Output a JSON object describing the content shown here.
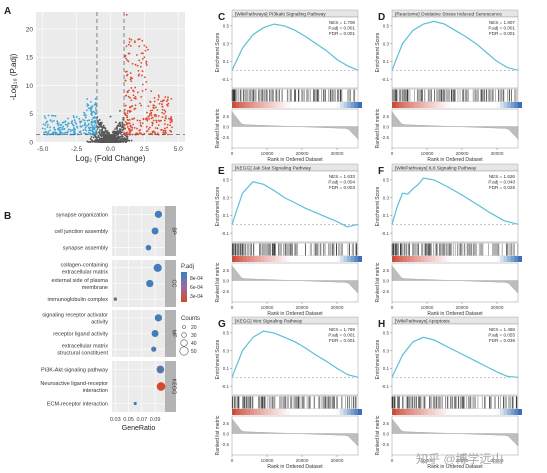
{
  "panels": {
    "A": {
      "letter": "A",
      "x_ticks": [
        "-5.0",
        "-2.5",
        "0.0",
        "2.5",
        "5.0"
      ],
      "y_ticks": [
        "0",
        "5",
        "10",
        "15",
        "20"
      ],
      "xlabel": "Log₂ (Fold Change)",
      "ylabel": "-Log₁₀ (P.adj)"
    },
    "B": {
      "letter": "B",
      "terms": [
        "synapse organization",
        "cell junction assembly",
        "synapse assembly",
        "collagen-containing extracellular matrix",
        "external side of plasma membrane",
        "immunoglobulin complex",
        "signaling receptor activator activity",
        "receptor ligand activity",
        "extracellular matrix structural constituent",
        "PI3K-Akt signaling pathway",
        "Neuroactive ligand-receptor interaction",
        "ECM-receptor interaction"
      ],
      "groups": [
        "BP",
        "CC",
        "MF",
        "KEGG"
      ],
      "x_ticks": [
        "0.03",
        "0.05",
        "0.07",
        "0.09"
      ],
      "xlabel": "GeneRatio",
      "legend_color_title": "P.adj",
      "legend_color_ticks": [
        "8e-04",
        "6e-04",
        "3e-04"
      ],
      "legend_size_title": "Counts",
      "legend_size_ticks": [
        "20",
        "30",
        "40",
        "50"
      ]
    },
    "C": {
      "letter": "C",
      "title": "[WikiPathways] PI3kakt Signaling Pathway",
      "nes": "NES = 1.708",
      "padj": "P.adj = 0.001",
      "fdr": "FDR = 0.001"
    },
    "D": {
      "letter": "D",
      "title": "[Reactome] Oxidative Stress Induced Senescence",
      "nes": "NES = 1.807",
      "padj": "P.adj = 0.001",
      "fdr": "FDR = 0.001"
    },
    "E": {
      "letter": "E",
      "title": "[KEGG] Jak Stat Signaling Pathway",
      "nes": "NES = 1.633",
      "padj": "P.adj = 0.004",
      "fdr": "FDR = 0.003"
    },
    "F": {
      "letter": "F",
      "title": "[WikiPathways] IL6 Signaling Pathway",
      "nes": "NES = 1.626",
      "padj": "P.adj = 0.040",
      "fdr": "FDR = 0.026"
    },
    "G": {
      "letter": "G",
      "title": "[KEGG] Wnt Signaling Pathway",
      "nes": "NES = 1.769",
      "padj": "P.adj = 0.001",
      "fdr": "FDR = 0.001"
    },
    "H": {
      "letter": "H",
      "title": "[WikiPathways] Apoptosis",
      "nes": "NES = 1.458",
      "padj": "P.adj = 0.055",
      "fdr": "FDR = 0.036"
    }
  },
  "gsea_common": {
    "es_ylabel": "Enrichment Score",
    "rank_ylabel": "Ranked list metric",
    "xlabel": "Rank in Ordered Dataset",
    "x_ticks": [
      "0",
      "10000",
      "20000",
      "30000"
    ]
  },
  "watermark": "知乎 @博学远山",
  "colors": {
    "up": "#e0492f",
    "down": "#3fa6d4",
    "ns": "#555555",
    "es_line": "#5bc0d6",
    "high_padj": "#3a80c4",
    "low_padj": "#d24a2a",
    "strip_red": "#d04a3a",
    "strip_blue": "#3a70b8"
  },
  "chart_data": [
    {
      "type": "scatter",
      "title": "",
      "xlabel": "Log₂ (Fold Change)",
      "ylabel": "-Log₁₀ (P.adj)",
      "xlim": [
        -5.5,
        5.5
      ],
      "ylim": [
        0,
        23
      ],
      "thresholds": {
        "fold_change": [
          -1,
          1
        ],
        "p_adj": 1.3
      },
      "series": [
        {
          "name": "",
          "points": [
            [
              -5.0,
              2.4
            ],
            [
              -3.8,
              3.2
            ],
            [
              -2.3,
              4.1
            ],
            [
              -1.5,
              6.0
            ],
            [
              -1.2,
              3.5
            ]
          ]
        },
        {
          "name": "",
          "points": [
            [
              -0.4,
              2.5
            ],
            [
              0.0,
              4.5
            ],
            [
              0.4,
              3.5
            ],
            [
              0.7,
              5.5
            ]
          ]
        },
        {
          "name": "",
          "points": [
            [
              1.2,
              22.5
            ],
            [
              1.5,
              17.0
            ],
            [
              2.0,
              13.5
            ],
            [
              2.5,
              15.0
            ],
            [
              3.0,
              9.0
            ],
            [
              4.5,
              4.0
            ]
          ]
        }
      ]
    },
    {
      "type": "scatter",
      "title": "",
      "xlabel": "GeneRatio",
      "x": [
        0.095,
        0.09,
        0.08,
        0.094,
        0.082,
        0.03,
        0.095,
        0.09,
        0.088,
        0.098,
        0.099,
        0.06
      ],
      "categories": [
        "synapse organization",
        "cell junction assembly",
        "synapse assembly",
        "collagen-containing extracellular matrix",
        "external side of plasma membrane",
        "immunoglobulin complex",
        "signaling receptor activator activity",
        "receptor ligand activity",
        "extracellular matrix structural constituent",
        "PI3K-Akt signaling pathway",
        "Neuroactive ligand-receptor interaction",
        "ECM-receptor interaction"
      ],
      "counts": [
        40,
        38,
        30,
        45,
        40,
        18,
        40,
        38,
        28,
        42,
        48,
        16
      ],
      "p_adj": [
        0.00085,
        0.00085,
        0.00085,
        0.00085,
        0.00085,
        0.0005,
        0.00085,
        0.00085,
        0.0008,
        0.00075,
        5e-05,
        0.0008
      ],
      "group_of_term": [
        "BP",
        "BP",
        "BP",
        "CC",
        "CC",
        "CC",
        "MF",
        "MF",
        "MF",
        "KEGG",
        "KEGG",
        "KEGG"
      ],
      "xlim": [
        0.025,
        0.105
      ]
    },
    {
      "type": "line",
      "title": "[WikiPathways] PI3kakt Signaling Pathway",
      "xlabel": "Rank in Ordered Dataset",
      "ylabel": "Enrichment Score",
      "xlim": [
        0,
        36000
      ],
      "ylim": [
        -0.2,
        0.6
      ],
      "x": [
        0,
        3000,
        6000,
        9000,
        12000,
        15000,
        18000,
        21000,
        24000,
        27000,
        30000,
        33000,
        36000
      ],
      "y": [
        0.0,
        0.25,
        0.4,
        0.48,
        0.52,
        0.5,
        0.45,
        0.38,
        0.3,
        0.22,
        0.12,
        0.05,
        0.0
      ]
    },
    {
      "type": "line",
      "title": "[Reactome] Oxidative Stress Induced Senescence",
      "xlabel": "Rank in Ordered Dataset",
      "ylabel": "Enrichment Score",
      "xlim": [
        0,
        36000
      ],
      "ylim": [
        -0.2,
        0.6
      ],
      "x": [
        0,
        3000,
        6000,
        9000,
        12000,
        15000,
        18000,
        21000,
        24000,
        27000,
        30000,
        33000,
        36000
      ],
      "y": [
        0.0,
        0.3,
        0.45,
        0.52,
        0.55,
        0.52,
        0.45,
        0.38,
        0.3,
        0.2,
        0.1,
        0.03,
        0.0
      ]
    },
    {
      "type": "line",
      "title": "[KEGG] Jak Stat Signaling Pathway",
      "xlabel": "Rank in Ordered Dataset",
      "ylabel": "Enrichment Score",
      "xlim": [
        0,
        36000
      ],
      "ylim": [
        -0.2,
        0.6
      ],
      "x": [
        0,
        3000,
        6000,
        9000,
        12000,
        15000,
        18000,
        21000,
        24000,
        27000,
        30000,
        33000,
        36000
      ],
      "y": [
        0.0,
        0.35,
        0.48,
        0.45,
        0.38,
        0.3,
        0.24,
        0.18,
        0.13,
        0.08,
        0.03,
        -0.03,
        0.0
      ]
    },
    {
      "type": "line",
      "title": "[WikiPathways] IL6 Signaling Pathway",
      "xlabel": "Rank in Ordered Dataset",
      "ylabel": "Enrichment Score",
      "xlim": [
        0,
        36000
      ],
      "ylim": [
        -0.2,
        0.6
      ],
      "x": [
        0,
        1500,
        3000,
        4500,
        6000,
        7500,
        9000,
        12000,
        16000,
        20000,
        24000,
        28000,
        32000,
        36000
      ],
      "y": [
        0.0,
        0.2,
        0.35,
        0.34,
        0.4,
        0.45,
        0.52,
        0.5,
        0.42,
        0.33,
        0.23,
        0.13,
        0.04,
        0.0
      ]
    },
    {
      "type": "line",
      "title": "[KEGG] Wnt Signaling Pathway",
      "xlabel": "Rank in Ordered Dataset",
      "ylabel": "Enrichment Score",
      "xlim": [
        0,
        36000
      ],
      "ylim": [
        -0.2,
        0.6
      ],
      "x": [
        0,
        3000,
        6000,
        9000,
        12000,
        15000,
        18000,
        21000,
        24000,
        27000,
        30000,
        33000,
        36000
      ],
      "y": [
        0.0,
        0.3,
        0.45,
        0.52,
        0.5,
        0.45,
        0.4,
        0.33,
        0.25,
        0.18,
        0.1,
        0.03,
        0.0
      ]
    },
    {
      "type": "line",
      "title": "[WikiPathways] Apoptosis",
      "xlabel": "Rank in Ordered Dataset",
      "ylabel": "Enrichment Score",
      "xlim": [
        0,
        36000
      ],
      "ylim": [
        -0.2,
        0.6
      ],
      "x": [
        0,
        3000,
        6000,
        9000,
        12000,
        15000,
        18000,
        21000,
        24000,
        27000,
        30000,
        33000,
        36000
      ],
      "y": [
        0.0,
        0.25,
        0.4,
        0.45,
        0.42,
        0.36,
        0.3,
        0.24,
        0.18,
        0.12,
        0.06,
        0.01,
        0.0
      ]
    }
  ]
}
